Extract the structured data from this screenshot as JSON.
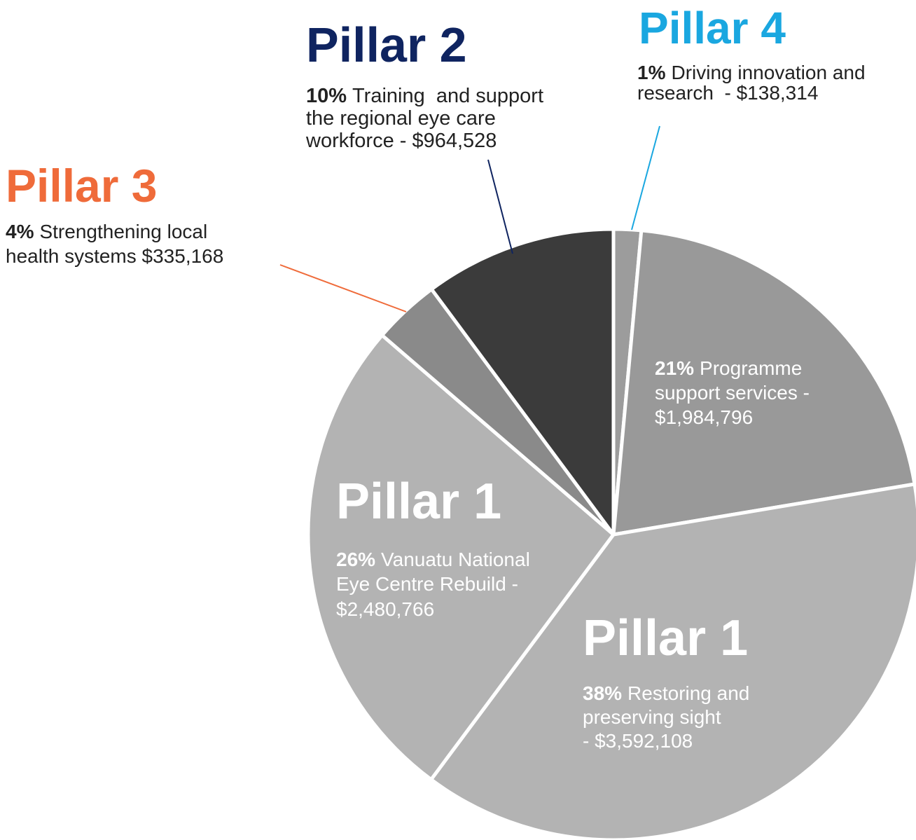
{
  "chart_data": {
    "type": "pie",
    "values": [
      138314,
      1984796,
      3592108,
      2480766,
      335168,
      964528
    ],
    "value_labels": [
      "$138,314",
      "$1,984,796",
      "$3,592,108",
      "$2,480,766",
      "$335,168",
      "$964,528"
    ],
    "percent_labels": [
      "1%",
      "21%",
      "38%",
      "26%",
      "4%",
      "10%"
    ],
    "titles": [
      "Pillar 4",
      null,
      "Pillar 1",
      "Pillar 1",
      "Pillar 3",
      "Pillar 2"
    ],
    "title_colors": [
      "#1aa7e0",
      null,
      "#ffffff",
      "#ffffff",
      "#ef6b3a",
      "#0f2460"
    ],
    "descriptions": [
      [
        "Driving innovation and",
        "research  - "
      ],
      [
        "Programme",
        "support services -"
      ],
      [
        "Restoring and",
        "preserving sight",
        "- "
      ],
      [
        "Vanuatu National",
        "Eye Centre Rebuild -"
      ],
      [
        "Strengthening local",
        "health systems "
      ],
      [
        "Training  and support",
        "the regional eye care",
        "workforce - "
      ]
    ],
    "colors": [
      "#9c9c9c",
      "#999999",
      "#b3b3b3",
      "#b3b3b3",
      "#8a8a8a",
      "#3b3b3b"
    ]
  }
}
